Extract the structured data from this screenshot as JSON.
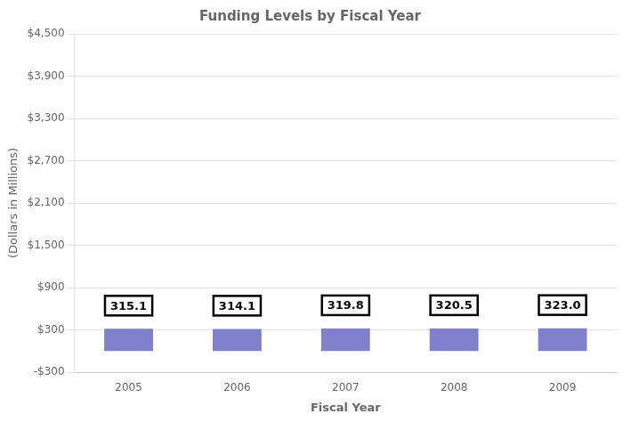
{
  "chart_data": {
    "type": "bar",
    "title": "Funding Levels by Fiscal Year",
    "x_label": "Fiscal Year",
    "y_label": "(Dollars in Millions)",
    "categories": [
      "2005",
      "2006",
      "2007",
      "2008",
      "2009"
    ],
    "values": [
      315.1,
      314.1,
      319.8,
      320.5,
      323.0
    ],
    "value_labels": [
      "315.1",
      "314.1",
      "319.8",
      "320.5",
      "323.0"
    ],
    "data_labels": true,
    "color": "#8080cc",
    "ylim": [
      -300,
      4500
    ],
    "yticks": [
      {
        "value": -300,
        "label": "-$300"
      },
      {
        "value": 300,
        "label": "$300"
      },
      {
        "value": 900,
        "label": "$900"
      },
      {
        "value": 1500,
        "label": "$1,500"
      },
      {
        "value": 2100,
        "label": "$2,100"
      },
      {
        "value": 2700,
        "label": "$2,700"
      },
      {
        "value": 3300,
        "label": "$3,300"
      },
      {
        "value": 3900,
        "label": "$3,900"
      },
      {
        "value": 4500,
        "label": "$4,500"
      }
    ],
    "grid": true
  }
}
